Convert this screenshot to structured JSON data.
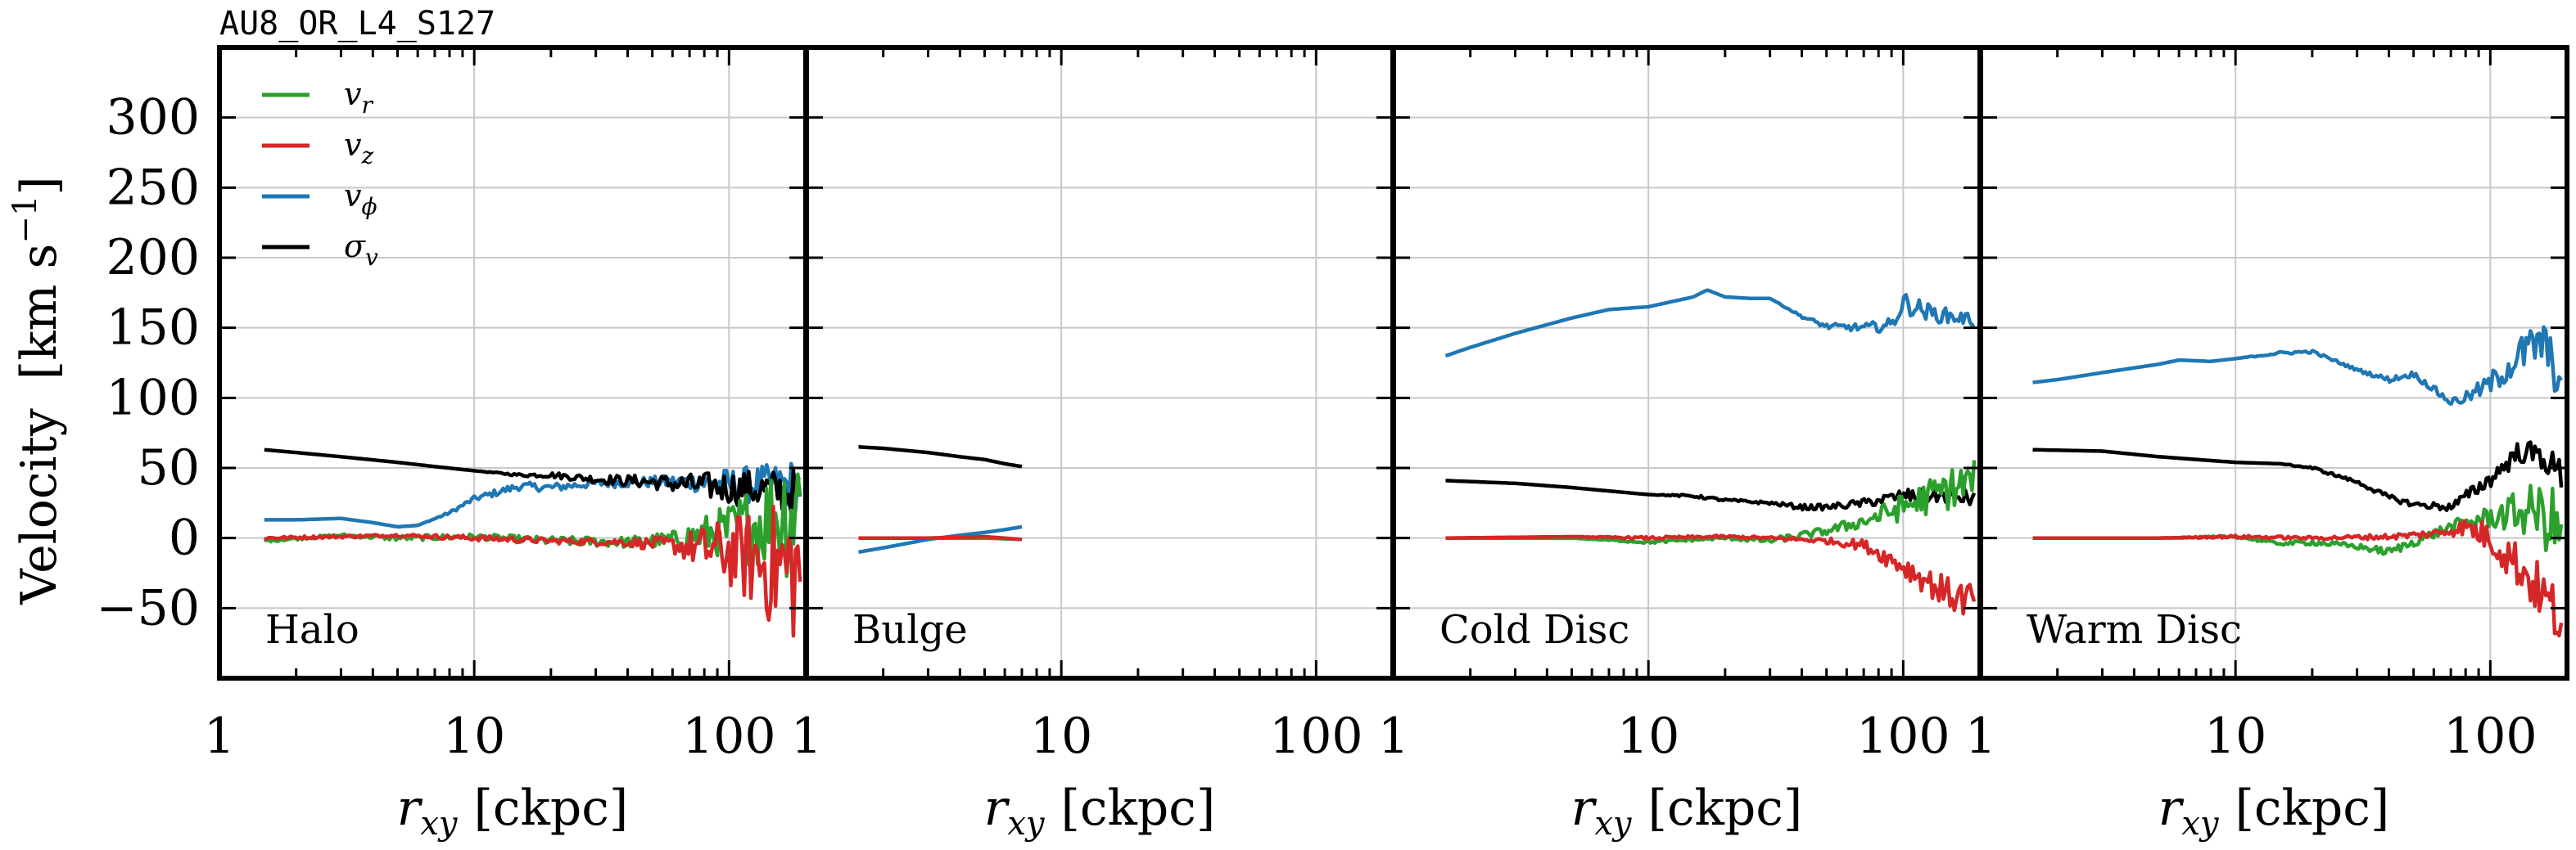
{
  "figure": {
    "simulation_label": "AU8_OR_L4_S127"
  },
  "chart_data": {
    "type": "line",
    "xlabel_symbol": "r",
    "xlabel_sub": "xy",
    "xlabel_unit": "[ckpc]",
    "ylabel": "Velocity",
    "ylabel_unit_main": "[km s",
    "ylabel_unit_sup": "−1",
    "ylabel_unit_end": "]",
    "xscale": "log",
    "xlim": [
      1,
      200
    ],
    "ylim": [
      -100,
      350
    ],
    "yticks": [
      300,
      250,
      200,
      150,
      100,
      50,
      0,
      -50
    ],
    "ytick_labels": [
      "300",
      "250",
      "200",
      "150",
      "100",
      "50",
      "0",
      "−50"
    ],
    "xticks": [
      1,
      10,
      100
    ],
    "xtick_labels": [
      "1",
      "10",
      "100"
    ],
    "grid": true,
    "legend_placement": "top-left",
    "colors": {
      "v_r": "#2ca02c",
      "v_z": "#d62728",
      "v_phi": "#1f77b4",
      "sigma_v": "#000000"
    },
    "legend": [
      {
        "key": "v_r",
        "symbol": "v",
        "sub": "r"
      },
      {
        "key": "v_z",
        "symbol": "v",
        "sub": "z"
      },
      {
        "key": "v_phi",
        "symbol": "v",
        "sub": "ϕ"
      },
      {
        "key": "sigma_v",
        "symbol": "σ",
        "sub": "v"
      }
    ],
    "panels": [
      {
        "label": "Halo",
        "series": [
          {
            "key": "sigma_v",
            "x": [
              1.5,
              2,
              3,
              5,
              7,
              10,
              15,
              20,
              30,
              50,
              70,
              100,
              150,
              190
            ],
            "y": [
              63,
              61,
              58,
              54,
              51,
              48,
              45,
              45,
              42,
              40,
              38,
              36,
              34,
              32
            ],
            "noise": [
              0,
              0,
              0,
              0,
              0,
              0,
              1,
              2,
              3,
              5,
              8,
              12,
              15,
              18
            ]
          },
          {
            "key": "v_phi",
            "x": [
              1.5,
              2,
              3,
              4,
              5,
              6,
              8,
              10,
              15,
              20,
              30,
              50,
              70,
              100,
              150,
              190
            ],
            "y": [
              13,
              13,
              14,
              11,
              8,
              9,
              18,
              28,
              37,
              36,
              39,
              40,
              40,
              38,
              38,
              38
            ],
            "noise": [
              0,
              0,
              0,
              0,
              0,
              0,
              1,
              2,
              3,
              3,
              3,
              4,
              6,
              12,
              15,
              20
            ]
          },
          {
            "key": "v_r",
            "x": [
              1.5,
              3,
              5,
              10,
              20,
              40,
              60,
              100,
              150,
              190
            ],
            "y": [
              -2,
              2,
              0,
              1,
              -2,
              -3,
              -1,
              5,
              15,
              25
            ],
            "noise": [
              1,
              1,
              2,
              2,
              3,
              4,
              6,
              20,
              40,
              60
            ]
          },
          {
            "key": "v_z",
            "x": [
              1.5,
              3,
              5,
              10,
              20,
              40,
              60,
              100,
              150,
              190
            ],
            "y": [
              0,
              1,
              2,
              0,
              -2,
              -3,
              -5,
              -10,
              -20,
              -25
            ],
            "noise": [
              1,
              1,
              1,
              2,
              2,
              3,
              6,
              25,
              45,
              55
            ]
          }
        ]
      },
      {
        "label": "Bulge",
        "series": [
          {
            "key": "sigma_v",
            "x": [
              1.6,
              2,
              3,
              4,
              5,
              6,
              7
            ],
            "y": [
              65,
              64,
              61,
              58,
              56,
              53,
              51
            ],
            "noise": [
              0,
              0,
              0,
              0,
              0,
              0,
              0
            ]
          },
          {
            "key": "v_phi",
            "x": [
              1.6,
              2,
              3,
              4,
              5,
              6,
              7
            ],
            "y": [
              -10,
              -7,
              -1,
              2,
              4,
              6,
              8
            ],
            "noise": [
              0,
              0,
              0,
              0,
              0,
              0,
              0
            ]
          },
          {
            "key": "v_r",
            "x": [
              1.6,
              3,
              5,
              7
            ],
            "y": [
              0,
              0,
              0,
              -1
            ],
            "noise": [
              0,
              0,
              0,
              0
            ]
          },
          {
            "key": "v_z",
            "x": [
              1.6,
              3,
              5,
              7
            ],
            "y": [
              0,
              0,
              1,
              -1
            ],
            "noise": [
              0,
              0,
              0,
              0
            ]
          }
        ]
      },
      {
        "label": "Cold Disc",
        "series": [
          {
            "key": "v_phi",
            "x": [
              1.6,
              2,
              3,
              5,
              7,
              10,
              15,
              17,
              20,
              25,
              30,
              40,
              50,
              70,
              90,
              100,
              130,
              170,
              190
            ],
            "y": [
              130,
              136,
              146,
              157,
              163,
              165,
              172,
              177,
              172,
              171,
              171,
              158,
              151,
              150,
              152,
              168,
              160,
              157,
              155
            ],
            "noise": [
              0,
              0,
              0,
              0,
              0,
              0,
              0,
              0,
              0,
              0,
              0,
              1,
              2,
              3,
              5,
              8,
              6,
              5,
              5
            ]
          },
          {
            "key": "sigma_v",
            "x": [
              1.6,
              3,
              5,
              10,
              15,
              20,
              30,
              40,
              50,
              70,
              100,
              150,
              190
            ],
            "y": [
              41,
              39,
              36,
              31,
              30,
              27,
              25,
              22,
              22,
              25,
              30,
              30,
              28
            ],
            "noise": [
              0,
              0,
              0,
              0,
              1,
              1,
              1,
              2,
              2,
              3,
              5,
              5,
              6
            ]
          },
          {
            "key": "v_r",
            "x": [
              1.6,
              5,
              10,
              20,
              30,
              50,
              70,
              100,
              150,
              190
            ],
            "y": [
              0,
              0,
              -3,
              0,
              -2,
              5,
              12,
              22,
              35,
              40
            ],
            "noise": [
              0,
              0,
              1,
              1,
              2,
              3,
              5,
              10,
              15,
              18
            ]
          },
          {
            "key": "v_z",
            "x": [
              1.6,
              5,
              10,
              20,
              30,
              50,
              70,
              100,
              150,
              190
            ],
            "y": [
              0,
              1,
              0,
              1,
              0,
              -2,
              -5,
              -20,
              -40,
              -45
            ],
            "noise": [
              0,
              0,
              1,
              1,
              1,
              2,
              4,
              8,
              12,
              15
            ]
          }
        ]
      },
      {
        "label": "Warm Disc",
        "series": [
          {
            "key": "v_phi",
            "x": [
              1.6,
              2,
              3,
              5,
              6,
              8,
              10,
              15,
              20,
              30,
              40,
              50,
              70,
              80,
              100,
              130,
              160,
              190
            ],
            "y": [
              111,
              113,
              118,
              124,
              127,
              126,
              128,
              132,
              133,
              120,
              113,
              117,
              97,
              100,
              110,
              130,
              140,
              110
            ],
            "noise": [
              0,
              0,
              0,
              0,
              0,
              0,
              0,
              1,
              1,
              1,
              2,
              2,
              3,
              4,
              8,
              14,
              18,
              16
            ]
          },
          {
            "key": "sigma_v",
            "x": [
              1.6,
              3,
              5,
              10,
              15,
              20,
              30,
              40,
              50,
              70,
              100,
              130,
              160,
              190
            ],
            "y": [
              63,
              62,
              58,
              54,
              53,
              50,
              40,
              29,
              24,
              22,
              42,
              62,
              58,
              45
            ],
            "noise": [
              0,
              0,
              0,
              0,
              0,
              1,
              1,
              2,
              2,
              3,
              6,
              8,
              10,
              12
            ]
          },
          {
            "key": "v_r",
            "x": [
              1.6,
              5,
              10,
              15,
              20,
              30,
              40,
              50,
              70,
              100,
              150,
              190
            ],
            "y": [
              0,
              0,
              1,
              -4,
              -3,
              -6,
              -10,
              -3,
              8,
              15,
              20,
              5
            ],
            "noise": [
              0,
              0,
              1,
              1,
              2,
              2,
              3,
              3,
              4,
              8,
              20,
              30
            ]
          },
          {
            "key": "v_z",
            "x": [
              1.6,
              5,
              10,
              20,
              40,
              60,
              80,
              100,
              130,
              160,
              190
            ],
            "y": [
              0,
              0,
              1,
              0,
              1,
              3,
              8,
              0,
              -20,
              -40,
              -60
            ],
            "noise": [
              0,
              0,
              1,
              1,
              2,
              3,
              6,
              12,
              18,
              20,
              22
            ]
          }
        ]
      }
    ]
  }
}
